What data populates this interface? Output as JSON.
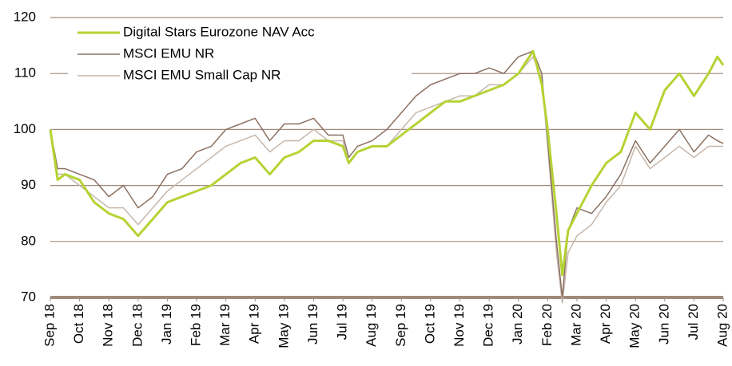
{
  "chart_data": {
    "type": "line",
    "x": [
      0,
      0.25,
      0.5,
      1,
      1.5,
      2,
      2.5,
      3,
      3.5,
      4,
      4.5,
      5,
      5.5,
      6,
      6.5,
      7,
      7.5,
      8,
      8.5,
      9,
      9.5,
      10,
      10.2,
      10.5,
      11,
      11.5,
      12,
      12.5,
      13,
      13.5,
      14,
      14.5,
      15,
      15.5,
      16,
      16.5,
      16.8,
      17,
      17.3,
      17.5,
      17.7,
      18,
      18.5,
      19,
      19.5,
      20,
      20.5,
      21,
      21.5,
      22,
      22.5,
      22.8,
      23
    ],
    "series": [
      {
        "name": "Digital Stars Eurozone NAV Acc",
        "color": "#b5d334",
        "width": 3,
        "values": [
          100,
          91,
          92,
          91,
          87,
          85,
          84,
          81,
          84,
          87,
          88,
          89,
          90,
          92,
          94,
          95,
          92,
          95,
          96,
          98,
          98,
          97,
          94,
          96,
          97,
          97,
          99,
          101,
          103,
          105,
          105,
          106,
          107,
          108,
          110,
          114,
          108,
          100,
          85,
          74,
          82,
          85,
          90,
          94,
          96,
          103,
          100,
          107,
          110,
          106,
          110,
          113,
          111.5
        ]
      },
      {
        "name": "MSCI EMU NR",
        "color": "#8b7162",
        "width": 1.5,
        "values": [
          100,
          93,
          93,
          92,
          91,
          88,
          90,
          86,
          88,
          92,
          93,
          96,
          97,
          100,
          101,
          102,
          98,
          101,
          101,
          102,
          99,
          99,
          95,
          97,
          98,
          100,
          103,
          106,
          108,
          109,
          110,
          110,
          111,
          110,
          113,
          114,
          110,
          98,
          80,
          70,
          82,
          86,
          85,
          88,
          92,
          98,
          94,
          97,
          100,
          96,
          99,
          98,
          97.5
        ]
      },
      {
        "name": "MSCI EMU Small Cap NR",
        "color": "#c6b6ab",
        "width": 1.5,
        "values": [
          100,
          92,
          92,
          90,
          88,
          86,
          86,
          83,
          86,
          89,
          91,
          93,
          95,
          97,
          98,
          99,
          96,
          98,
          98,
          100,
          98,
          98,
          94,
          96,
          97,
          97,
          100,
          103,
          104,
          105,
          106,
          106,
          108,
          108,
          110,
          113,
          109,
          97,
          78,
          69,
          78,
          81,
          83,
          87,
          90,
          97,
          93,
          95,
          97,
          95,
          97,
          97,
          97
        ]
      }
    ],
    "xlim": [
      0,
      23
    ],
    "xticks": [
      {
        "value": 0,
        "label": "Sep 18"
      },
      {
        "value": 1,
        "label": "Oct 18"
      },
      {
        "value": 2,
        "label": "Nov 18"
      },
      {
        "value": 3,
        "label": "Dec 18"
      },
      {
        "value": 4,
        "label": "Jan 19"
      },
      {
        "value": 5,
        "label": "Feb 19"
      },
      {
        "value": 6,
        "label": "Mar 19"
      },
      {
        "value": 7,
        "label": "Apr 19"
      },
      {
        "value": 8,
        "label": "May 19"
      },
      {
        "value": 9,
        "label": "Jun 19"
      },
      {
        "value": 10,
        "label": "Jul 19"
      },
      {
        "value": 11,
        "label": "Aug 19"
      },
      {
        "value": 12,
        "label": "Sep 19"
      },
      {
        "value": 13,
        "label": "Oct 19"
      },
      {
        "value": 14,
        "label": "Nov 19"
      },
      {
        "value": 15,
        "label": "Dec 19"
      },
      {
        "value": 16,
        "label": "Jan 20"
      },
      {
        "value": 17,
        "label": "Feb 20"
      },
      {
        "value": 18,
        "label": "Mar 20"
      },
      {
        "value": 19,
        "label": "Apr 20"
      },
      {
        "value": 20,
        "label": "May 20"
      },
      {
        "value": 21,
        "label": "Jun 20"
      },
      {
        "value": 22,
        "label": "Jul 20"
      },
      {
        "value": 23,
        "label": "Aug 20"
      }
    ],
    "ylim": [
      70,
      120
    ],
    "yticks": [
      70,
      80,
      90,
      100,
      110,
      120
    ],
    "grid": true,
    "legend": "upper left"
  }
}
